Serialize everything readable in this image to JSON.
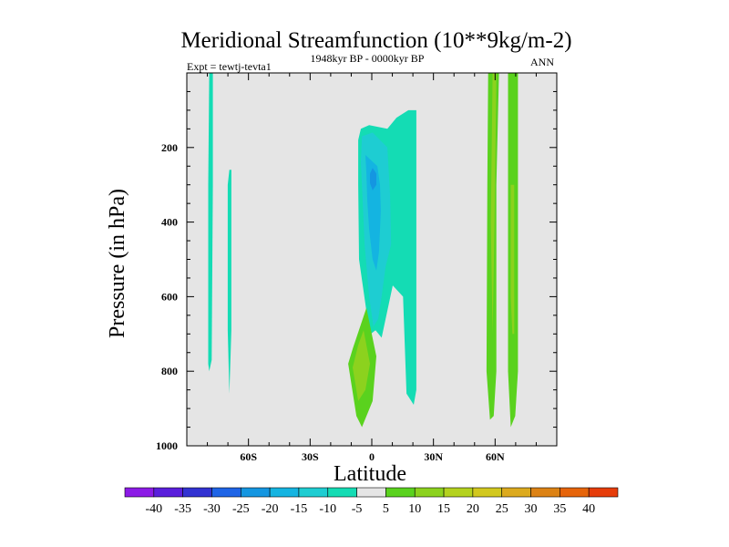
{
  "chart_data": {
    "type": "contour",
    "title": "Meridional Streamfunction (10**9kg/m-2)",
    "subtitle": "1948kyr BP - 0000kyr BP",
    "left_label": "Expt = tewtj-tevta1",
    "right_label": "ANN",
    "xlabel": "Latitude",
    "ylabel": "Pressure (in hPa)",
    "xlim": [
      -90,
      90
    ],
    "ylim": [
      1000,
      0
    ],
    "x_ticks": [
      {
        "value": -60,
        "label": "60S"
      },
      {
        "value": -30,
        "label": "30S"
      },
      {
        "value": 0,
        "label": "0"
      },
      {
        "value": 30,
        "label": "30N"
      },
      {
        "value": 60,
        "label": "60N"
      }
    ],
    "y_ticks": [
      {
        "value": 200,
        "label": "200"
      },
      {
        "value": 400,
        "label": "400"
      },
      {
        "value": 600,
        "label": "600"
      },
      {
        "value": 800,
        "label": "800"
      },
      {
        "value": 1000,
        "label": "1000"
      }
    ],
    "background_color": "#e5e5e5",
    "colorbar": {
      "levels": [
        -40,
        -35,
        -30,
        -25,
        -20,
        -15,
        -10,
        -5,
        5,
        10,
        15,
        20,
        25,
        30,
        35,
        40
      ],
      "labels": [
        "-40",
        "-35",
        "-30",
        "-25",
        "-20",
        "-15",
        "-10",
        "-5",
        "5",
        "10",
        "15",
        "20",
        "25",
        "30",
        "35",
        "40"
      ],
      "colors": [
        "#8c1ae6",
        "#5a1edc",
        "#3232d2",
        "#1e64e6",
        "#1496e1",
        "#14b4e1",
        "#1ecdd2",
        "#14dcb4",
        "#e5e5e5",
        "#5ad21e",
        "#8cd21e",
        "#b4d21e",
        "#d2c81e",
        "#dcaa1e",
        "#dc8214",
        "#e6640a",
        "#e63c0a"
      ]
    },
    "regions": [
      {
        "name": "region-neg5-south-1",
        "level": -5,
        "points": [
          [
            -79.1,
            0
          ],
          [
            -77.3,
            0
          ],
          [
            -77.3,
            300
          ],
          [
            -77.9,
            770
          ],
          [
            -79.1,
            800
          ],
          [
            -79.6,
            780
          ],
          [
            -79.6,
            300
          ]
        ]
      },
      {
        "name": "region-neg5-south-2",
        "level": -5,
        "points": [
          [
            -69.3,
            260
          ],
          [
            -68.3,
            260
          ],
          [
            -68.3,
            690
          ],
          [
            -69.3,
            860
          ],
          [
            -70.1,
            690
          ],
          [
            -70.1,
            300
          ]
        ]
      },
      {
        "name": "region-neg5-tropics",
        "level": -5,
        "points": [
          [
            -5.3,
            150
          ],
          [
            -1.3,
            140
          ],
          [
            7.6,
            150
          ],
          [
            12.0,
            120
          ],
          [
            17.8,
            100
          ],
          [
            21.7,
            100
          ],
          [
            21.7,
            850
          ],
          [
            20.4,
            890
          ],
          [
            16.9,
            860
          ],
          [
            15.2,
            600
          ],
          [
            10.2,
            570
          ],
          [
            4.8,
            710
          ],
          [
            1.8,
            690
          ],
          [
            -0.5,
            700
          ],
          [
            -1.3,
            690
          ],
          [
            -6.2,
            500
          ],
          [
            -6.6,
            300
          ],
          [
            -6.6,
            180
          ]
        ]
      },
      {
        "name": "region-neg10-tropics",
        "level": -10,
        "points": [
          [
            -4.8,
            170
          ],
          [
            0.4,
            160
          ],
          [
            7.6,
            200
          ],
          [
            8.9,
            330
          ],
          [
            9.4,
            460
          ],
          [
            6.7,
            520
          ],
          [
            4.8,
            600
          ],
          [
            3.1,
            660
          ],
          [
            0.8,
            680
          ],
          [
            -1.3,
            600
          ],
          [
            -3.5,
            460
          ],
          [
            -4.4,
            350
          ],
          [
            -5.3,
            240
          ]
        ]
      },
      {
        "name": "region-neg15-tropics",
        "level": -15,
        "points": [
          [
            -3.1,
            220
          ],
          [
            2.7,
            250
          ],
          [
            4.0,
            300
          ],
          [
            4.4,
            370
          ],
          [
            3.5,
            480
          ],
          [
            2.2,
            530
          ],
          [
            0.4,
            500
          ],
          [
            -1.3,
            420
          ],
          [
            -2.2,
            340
          ],
          [
            -2.6,
            270
          ]
        ]
      },
      {
        "name": "region-neg20-core",
        "level": -20,
        "points": [
          [
            0.4,
            255
          ],
          [
            2.2,
            270
          ],
          [
            2.2,
            300
          ],
          [
            0.4,
            315
          ],
          [
            -0.9,
            295
          ],
          [
            -0.9,
            270
          ]
        ]
      },
      {
        "name": "region-pos5-tropics",
        "level": 5,
        "points": [
          [
            -2.6,
            630
          ],
          [
            2.2,
            760
          ],
          [
            0.4,
            880
          ],
          [
            -4.8,
            950
          ],
          [
            -7.5,
            920
          ],
          [
            -11.5,
            780
          ],
          [
            -9.3,
            740
          ]
        ]
      },
      {
        "name": "region-pos10-tropics",
        "level": 10,
        "points": [
          [
            -4.0,
            690
          ],
          [
            -0.9,
            780
          ],
          [
            -3.1,
            850
          ],
          [
            -6.6,
            880
          ],
          [
            -9.3,
            790
          ],
          [
            -6.6,
            730
          ]
        ]
      },
      {
        "name": "region-pos5-north-1",
        "level": 5,
        "points": [
          [
            56.6,
            0
          ],
          [
            61.9,
            0
          ],
          [
            60.6,
            300
          ],
          [
            60.6,
            800
          ],
          [
            59.3,
            920
          ],
          [
            57.5,
            930
          ],
          [
            55.8,
            800
          ],
          [
            56.2,
            300
          ]
        ]
      },
      {
        "name": "region-pos5-north-2",
        "level": 5,
        "points": [
          [
            66.3,
            0
          ],
          [
            71.1,
            0
          ],
          [
            71.1,
            300
          ],
          [
            71.1,
            800
          ],
          [
            69.8,
            920
          ],
          [
            67.6,
            950
          ],
          [
            66.3,
            800
          ],
          [
            66.3,
            300
          ]
        ]
      },
      {
        "name": "region-pos10-north-1",
        "level": 10,
        "points": [
          [
            58.8,
            0
          ],
          [
            60.6,
            0
          ],
          [
            59.7,
            400
          ],
          [
            58.8,
            700
          ],
          [
            57.9,
            400
          ]
        ]
      },
      {
        "name": "region-pos10-north-2",
        "level": 10,
        "points": [
          [
            67.6,
            300
          ],
          [
            69.3,
            300
          ],
          [
            69.3,
            700
          ],
          [
            68.4,
            700
          ],
          [
            67.6,
            600
          ]
        ]
      },
      {
        "name": "region-neutral-strip",
        "level": 0,
        "points": [
          [
            63.7,
            0
          ],
          [
            64.1,
            0
          ],
          [
            64.1,
            200
          ],
          [
            63.7,
            200
          ]
        ]
      }
    ]
  }
}
